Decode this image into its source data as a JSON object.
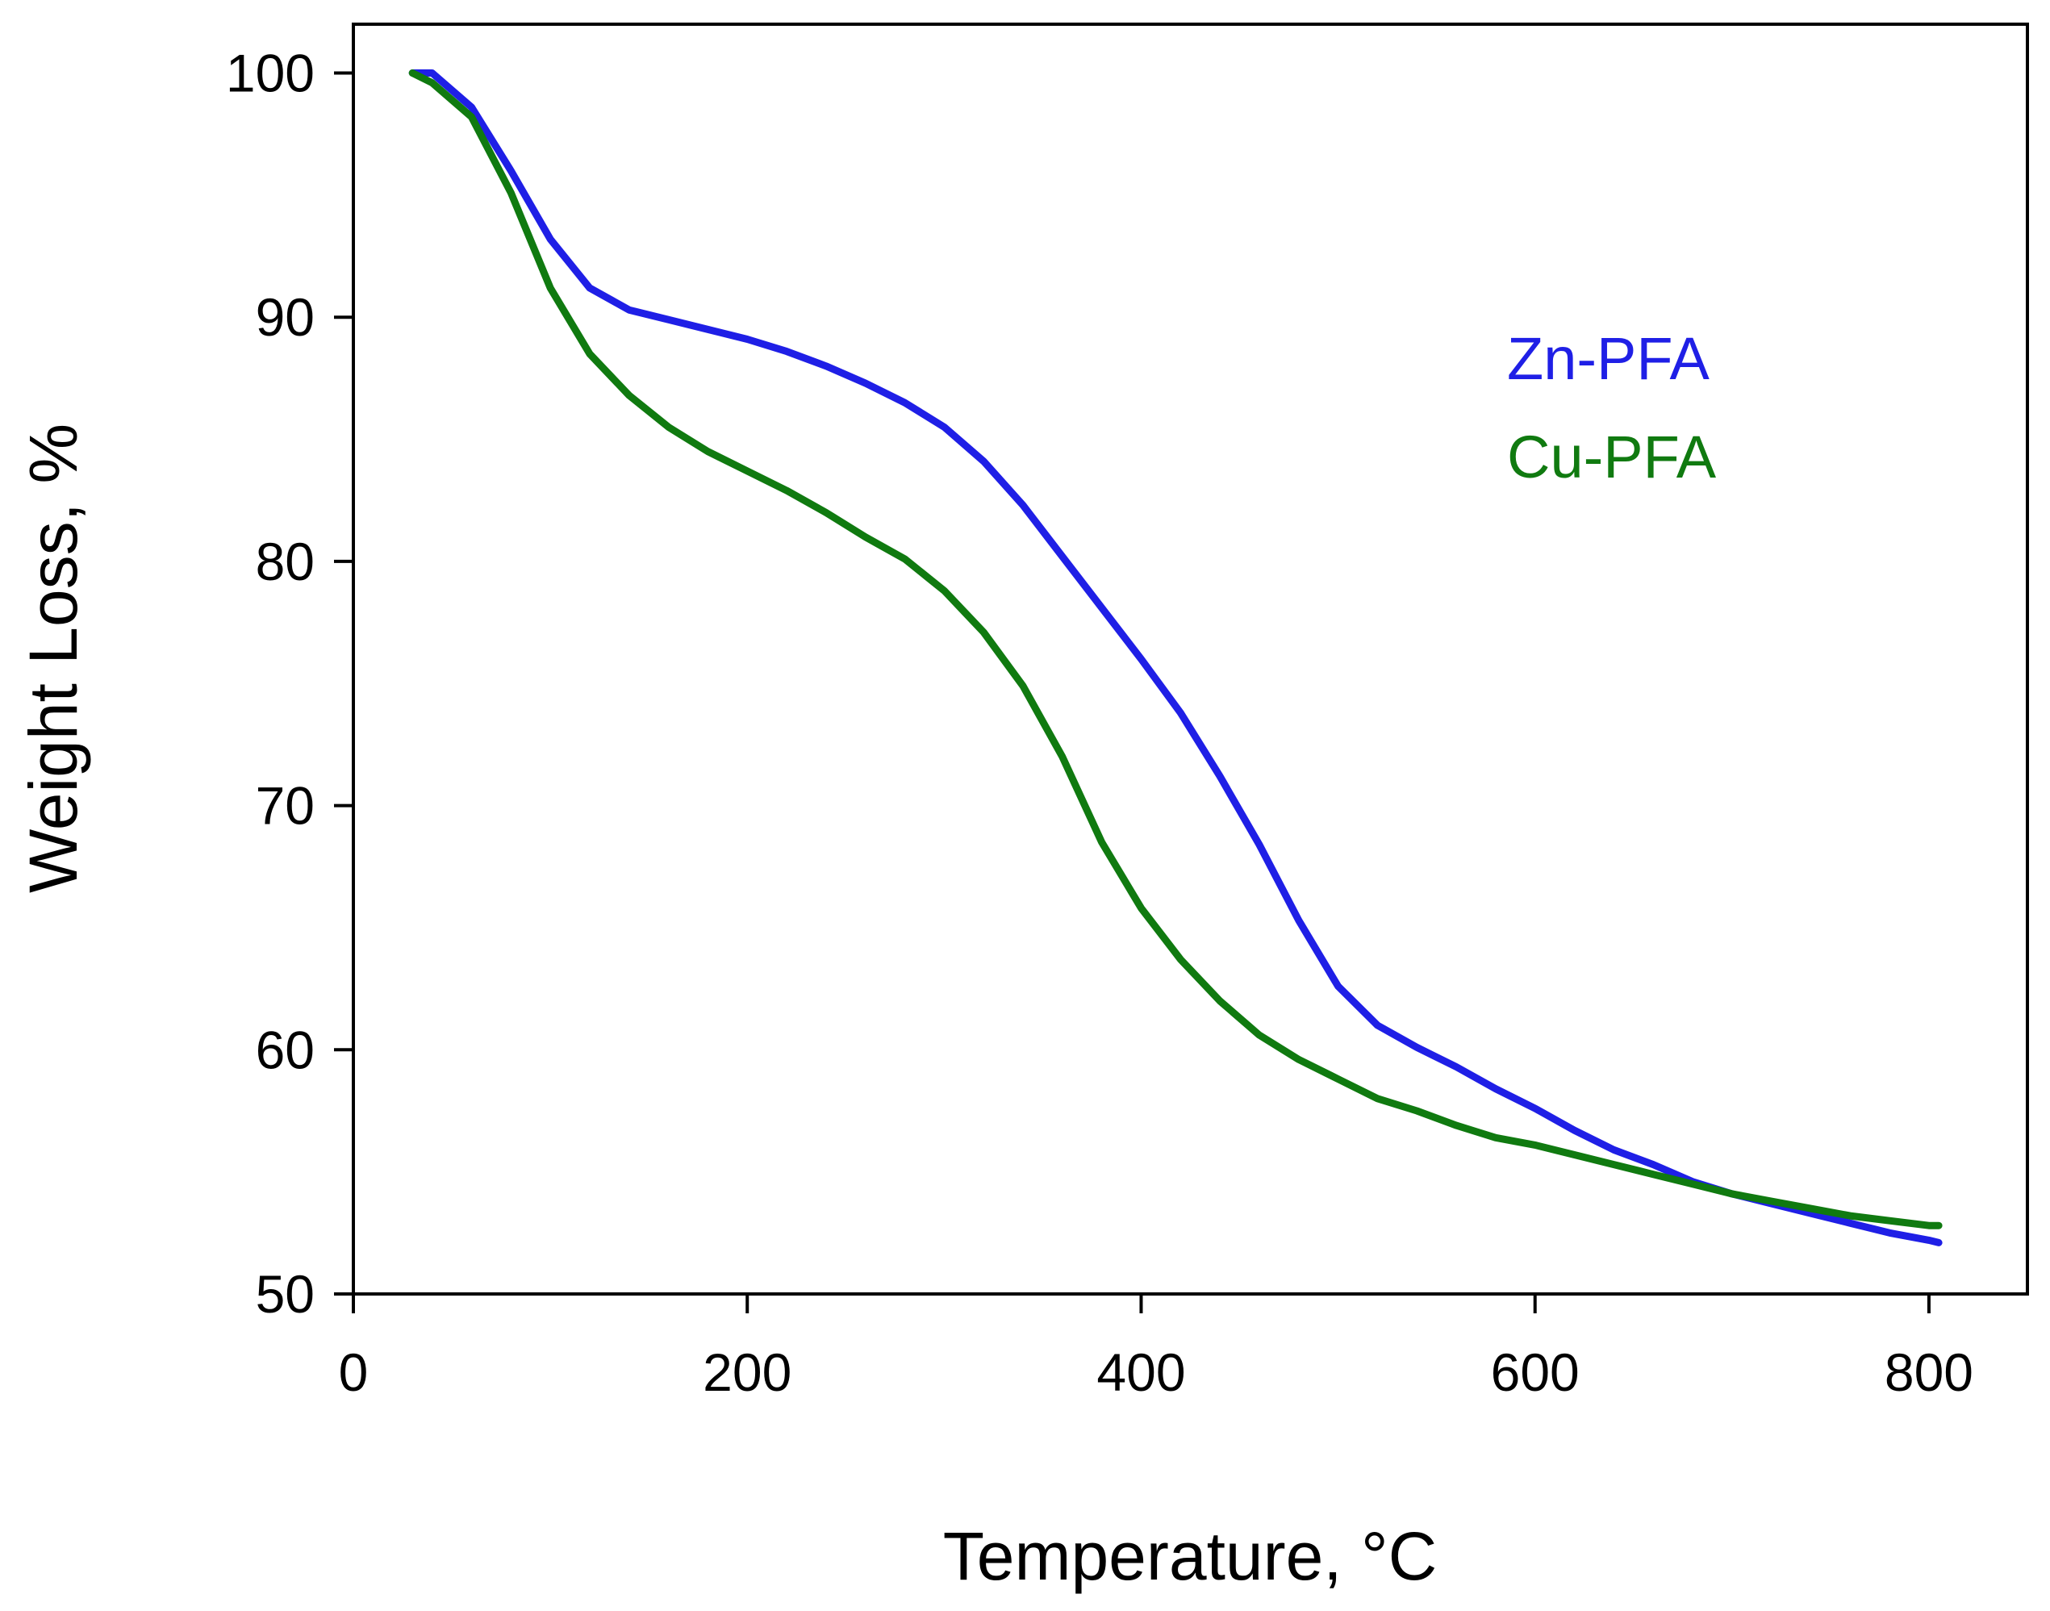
{
  "chart_data": {
    "type": "line",
    "title": "",
    "xlabel": "Temperature, °C",
    "ylabel": "Weight Loss, %",
    "xlim": [
      0,
      850
    ],
    "ylim": [
      50,
      102
    ],
    "xticks": [
      0,
      200,
      400,
      600,
      800
    ],
    "yticks": [
      50,
      60,
      70,
      80,
      90,
      100
    ],
    "grid": false,
    "legend_position": "top-right",
    "series": [
      {
        "name": "Zn-PFA",
        "color": "#1f1fe6",
        "x": [
          30,
          40,
          60,
          80,
          100,
          120,
          140,
          160,
          180,
          200,
          220,
          240,
          260,
          280,
          300,
          320,
          340,
          360,
          380,
          400,
          420,
          440,
          460,
          480,
          500,
          520,
          540,
          560,
          580,
          600,
          620,
          640,
          660,
          680,
          700,
          720,
          740,
          760,
          780,
          800,
          805
        ],
        "values": [
          100.0,
          100.0,
          98.6,
          96.0,
          93.2,
          91.2,
          90.3,
          89.9,
          89.5,
          89.1,
          88.6,
          88.0,
          87.3,
          86.5,
          85.5,
          84.1,
          82.3,
          80.2,
          78.1,
          76.0,
          73.8,
          71.2,
          68.4,
          65.3,
          62.6,
          61.0,
          60.1,
          59.3,
          58.4,
          57.6,
          56.7,
          55.9,
          55.3,
          54.6,
          54.1,
          53.7,
          53.3,
          52.9,
          52.5,
          52.2,
          52.1
        ]
      },
      {
        "name": "Cu-PFA",
        "color": "#107a10",
        "x": [
          30,
          40,
          60,
          80,
          100,
          120,
          140,
          160,
          180,
          200,
          220,
          240,
          260,
          280,
          300,
          320,
          340,
          360,
          380,
          400,
          420,
          440,
          460,
          480,
          500,
          520,
          540,
          560,
          580,
          600,
          620,
          640,
          660,
          680,
          700,
          720,
          740,
          760,
          780,
          800,
          805
        ],
        "values": [
          100.0,
          99.6,
          98.2,
          95.1,
          91.2,
          88.5,
          86.8,
          85.5,
          84.5,
          83.7,
          82.9,
          82.0,
          81.0,
          80.1,
          78.8,
          77.1,
          74.9,
          72.0,
          68.5,
          65.8,
          63.7,
          62.0,
          60.6,
          59.6,
          58.8,
          58.0,
          57.5,
          56.9,
          56.4,
          56.1,
          55.7,
          55.3,
          54.9,
          54.5,
          54.1,
          53.8,
          53.5,
          53.2,
          53.0,
          52.8,
          52.8
        ]
      }
    ]
  }
}
